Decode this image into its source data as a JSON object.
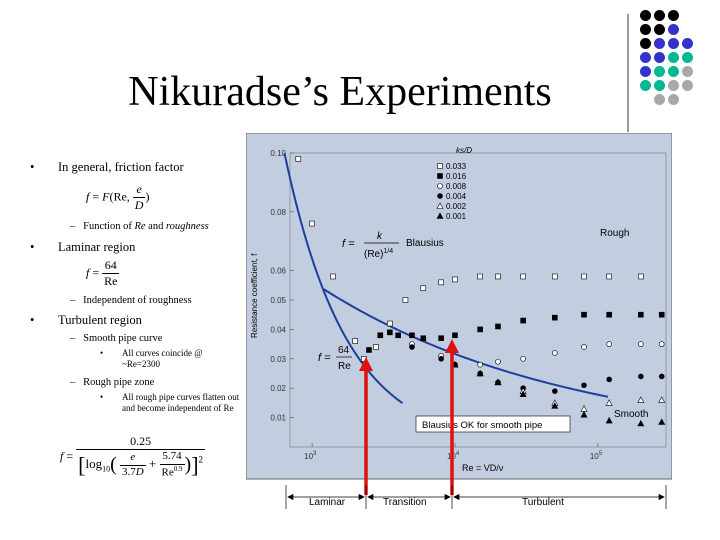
{
  "slide": {
    "title": "Nikuradse’s Experiments",
    "bullets": {
      "b1": "In general, friction factor",
      "b1_sub": "Function of Re and roughness",
      "b2": "Laminar region",
      "b2_sub": "Independent of roughness",
      "b3": "Turbulent region",
      "b3_sub1": "Smooth pipe curve",
      "b3_sub1_detail": "All curves coincide @ ~Re=2300",
      "b3_sub2": "Rough pipe zone",
      "b3_sub2_detail": "All rough pipe curves flatten out and become independent of Re"
    },
    "decor_colors": [
      "#000000",
      "#3333cc",
      "#00b894",
      "#a8a8a8"
    ]
  },
  "chart_data": {
    "type": "scatter",
    "x_scale": "log",
    "xlim": [
      700,
      300000
    ],
    "ylim": [
      0,
      0.1
    ],
    "yticks": [
      "0.01",
      "0.02",
      "0.03",
      "0.04",
      "0.05",
      "0.06",
      "0.08",
      "0.10"
    ],
    "xticks": [
      "10",
      "10",
      "10"
    ],
    "xtick_exponents": [
      "3",
      "4",
      "5"
    ],
    "ylabel": "Resistance coefficient, f",
    "xlabel": "Re = VD/ν",
    "legend_title": "ks/D",
    "legend": [
      "0.033",
      "0.016",
      "0.008",
      "0.004",
      "0.002",
      "0.001"
    ],
    "annotations": {
      "blausius": "Blausius",
      "rough": "Rough",
      "smooth": "Smooth",
      "blausius_ok": "Blausius OK for smooth pipe",
      "laminar": "Laminar",
      "transition": "Transition",
      "turbulent": "Turbulent"
    },
    "series": [
      {
        "name": "0.033",
        "marker": "open-square",
        "x": [
          800,
          1000,
          1400,
          2000,
          2300,
          2800,
          3500,
          4500,
          6000,
          8000,
          10000,
          15000,
          20000,
          30000,
          50000,
          80000,
          120000,
          200000
        ],
        "y": [
          0.098,
          0.076,
          0.058,
          0.036,
          0.03,
          0.034,
          0.042,
          0.05,
          0.054,
          0.056,
          0.057,
          0.058,
          0.058,
          0.058,
          0.058,
          0.058,
          0.058,
          0.058
        ]
      },
      {
        "name": "0.016",
        "marker": "filled-square",
        "x": [
          2500,
          3000,
          3500,
          4000,
          5000,
          6000,
          8000,
          10000,
          15000,
          20000,
          30000,
          50000,
          80000,
          120000,
          200000,
          280000
        ],
        "y": [
          0.033,
          0.038,
          0.039,
          0.038,
          0.038,
          0.037,
          0.037,
          0.038,
          0.04,
          0.041,
          0.043,
          0.044,
          0.045,
          0.045,
          0.045,
          0.045
        ]
      },
      {
        "name": "0.008",
        "marker": "open-circle",
        "x": [
          3000,
          5000,
          8000,
          10000,
          15000,
          20000,
          30000,
          50000,
          80000,
          120000,
          200000,
          280000
        ],
        "y": [
          0.038,
          0.035,
          0.031,
          0.028,
          0.028,
          0.029,
          0.03,
          0.032,
          0.034,
          0.035,
          0.035,
          0.035
        ]
      },
      {
        "name": "0.004",
        "marker": "filled-circle",
        "x": [
          3000,
          5000,
          8000,
          10000,
          15000,
          20000,
          30000,
          50000,
          80000,
          120000,
          200000,
          280000
        ],
        "y": [
          0.038,
          0.034,
          0.03,
          0.028,
          0.025,
          0.022,
          0.02,
          0.019,
          0.021,
          0.023,
          0.024,
          0.024
        ]
      },
      {
        "name": "0.002",
        "marker": "open-triangle",
        "x": [
          10000,
          15000,
          20000,
          30000,
          50000,
          80000,
          120000,
          200000,
          280000
        ],
        "y": [
          0.028,
          0.025,
          0.022,
          0.019,
          0.015,
          0.013,
          0.015,
          0.016,
          0.016
        ]
      },
      {
        "name": "0.001",
        "marker": "filled-triangle",
        "x": [
          10000,
          15000,
          20000,
          30000,
          50000,
          80000,
          120000,
          200000,
          280000
        ],
        "y": [
          0.028,
          0.025,
          0.022,
          0.018,
          0.014,
          0.011,
          0.009,
          0.008,
          0.0085
        ]
      }
    ]
  }
}
